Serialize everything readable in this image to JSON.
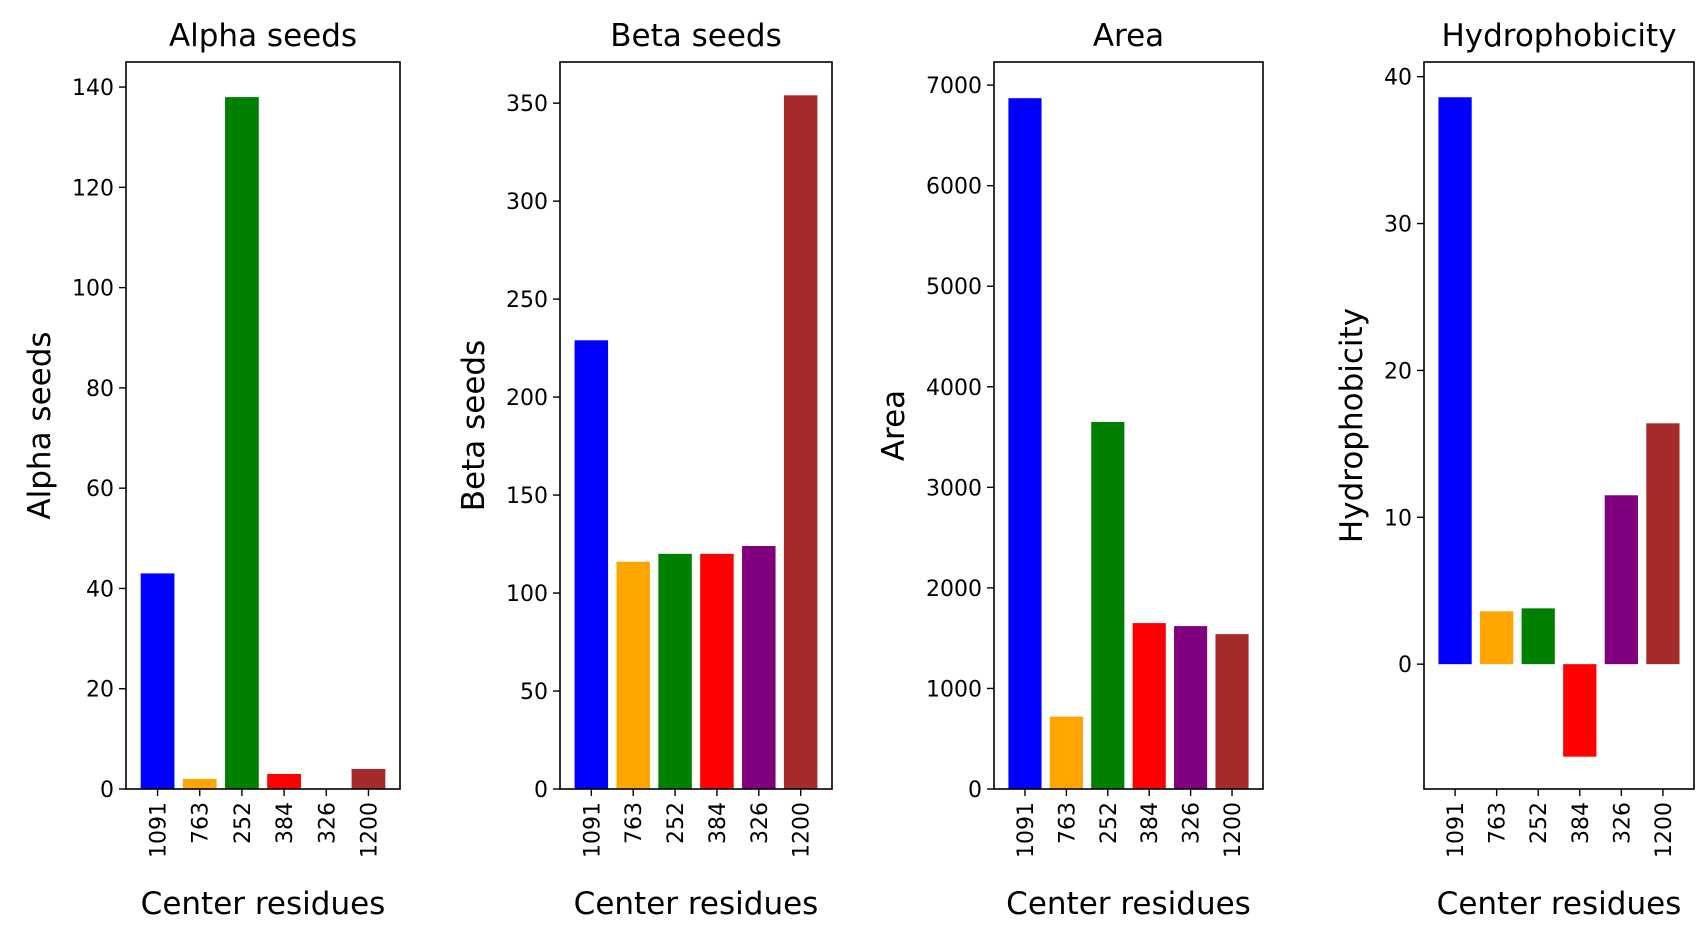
{
  "chart_data": [
    {
      "type": "bar",
      "title": "Alpha seeds",
      "xlabel": "Center residues",
      "ylabel": "Alpha seeds",
      "categories": [
        "1091",
        "763",
        "252",
        "384",
        "326",
        "1200"
      ],
      "values": [
        43,
        2,
        138,
        3,
        0,
        4
      ],
      "ylim": [
        0,
        145
      ],
      "yticks": [
        "0",
        "20",
        "40",
        "60",
        "80",
        "100",
        "120",
        "140"
      ],
      "colors": [
        "#0000ff",
        "#ffa500",
        "#008000",
        "#ff0000",
        "#800080",
        "#a52a2a"
      ]
    },
    {
      "type": "bar",
      "title": "Beta seeds",
      "xlabel": "Center residues",
      "ylabel": "Beta seeds",
      "categories": [
        "1091",
        "763",
        "252",
        "384",
        "326",
        "1200"
      ],
      "values": [
        229,
        116,
        120,
        120,
        124,
        354
      ],
      "ylim": [
        0,
        371
      ],
      "yticks": [
        "0",
        "50",
        "100",
        "150",
        "200",
        "250",
        "300",
        "350"
      ],
      "colors": [
        "#0000ff",
        "#ffa500",
        "#008000",
        "#ff0000",
        "#800080",
        "#a52a2a"
      ]
    },
    {
      "type": "bar",
      "title": "Area",
      "xlabel": "Center residues",
      "ylabel": "Area",
      "categories": [
        "1091",
        "763",
        "252",
        "384",
        "326",
        "1200"
      ],
      "values": [
        6870,
        720,
        3650,
        1650,
        1620,
        1540
      ],
      "ylim": [
        0,
        7230
      ],
      "yticks": [
        "0",
        "1000",
        "2000",
        "3000",
        "4000",
        "5000",
        "6000",
        "7000"
      ],
      "colors": [
        "#0000ff",
        "#ffa500",
        "#008000",
        "#ff0000",
        "#800080",
        "#a52a2a"
      ]
    },
    {
      "type": "bar",
      "title": "Hydrophobicity",
      "xlabel": "Center residues",
      "ylabel": "Hydrophobicity",
      "categories": [
        "1091",
        "763",
        "252",
        "384",
        "326",
        "1200"
      ],
      "values": [
        38.6,
        3.6,
        3.8,
        -6.3,
        11.5,
        16.4
      ],
      "ylim": [
        -8.5,
        41
      ],
      "yticks": [
        "0",
        "10",
        "20",
        "30",
        "40"
      ],
      "colors": [
        "#0000ff",
        "#ffa500",
        "#008000",
        "#ff0000",
        "#800080",
        "#a52a2a"
      ]
    }
  ]
}
